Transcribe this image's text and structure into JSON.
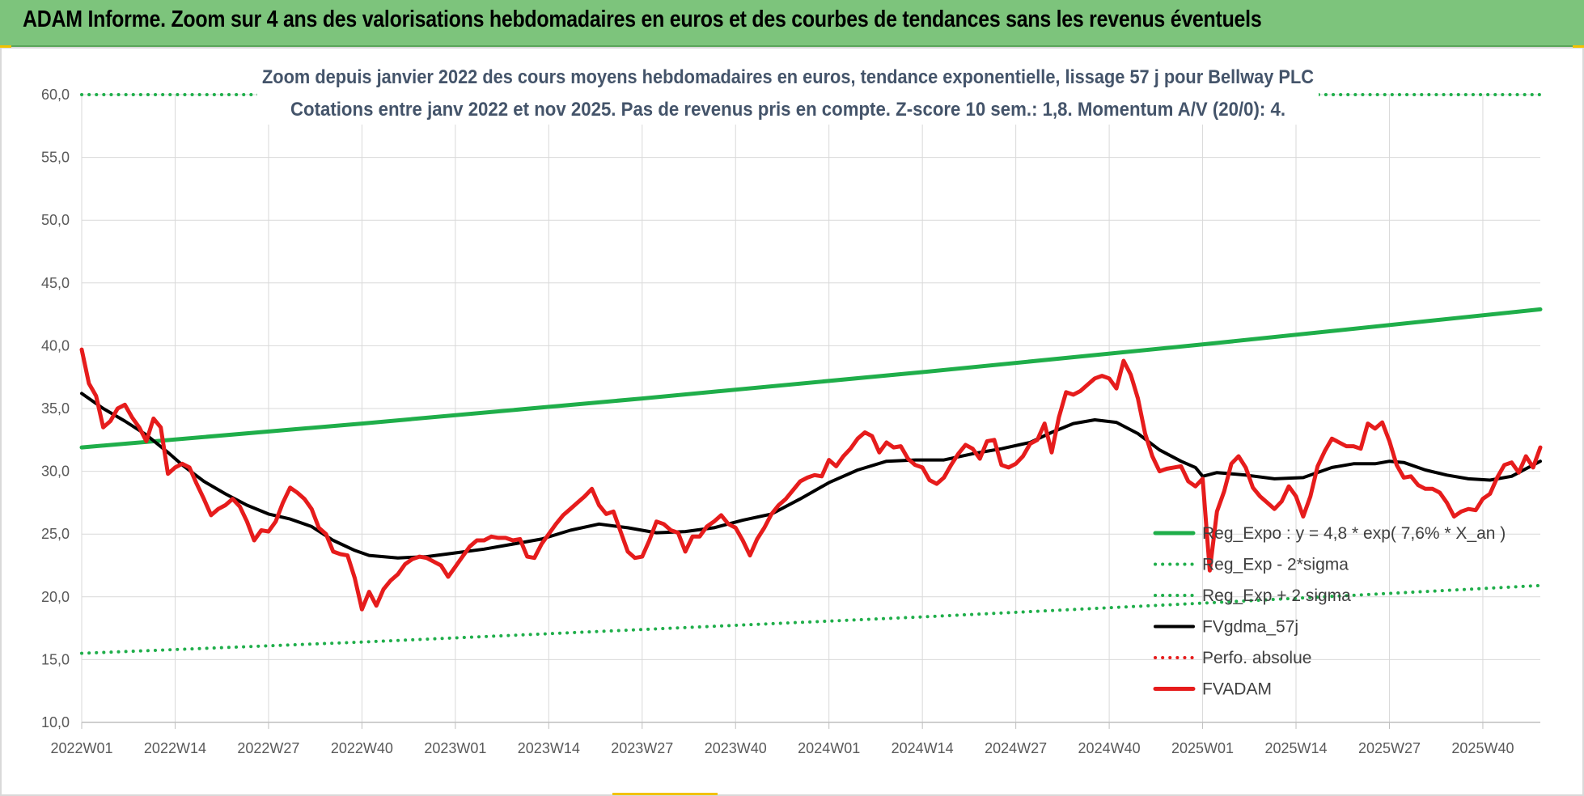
{
  "banner": {
    "title": "ADAM Informe. Zoom sur 4 ans des valorisations hebdomadaires en euros et des courbes de tendances sans les revenus éventuels"
  },
  "colors": {
    "banner_bg": "#7dc47c",
    "trend_green": "#1fae4a",
    "smooth_black": "#000000",
    "price_red": "#e61c1c",
    "grid": "#d9d9d9",
    "title_text": "#44546a"
  },
  "chart_data": {
    "type": "line",
    "title_line1": "Zoom depuis janvier 2022 des cours moyens hebdomadaires en euros, tendance exponentielle, lissage 57 j pour Bellway PLC",
    "title_line2": "Cotations entre janv 2022 et nov 2025. Pas de revenus pris en compte. Z-score 10 sem.: 1,8. Momentum A/V (20/0): 4.",
    "xlabel": "",
    "ylabel": "",
    "ylim": [
      10,
      60
    ],
    "yticks": [
      "10,0",
      "15,0",
      "20,0",
      "25,0",
      "30,0",
      "35,0",
      "40,0",
      "45,0",
      "50,0",
      "55,0",
      "60,0"
    ],
    "x_range_weeks": [
      0,
      203
    ],
    "xticks": [
      {
        "week": 0,
        "label": "2022W01"
      },
      {
        "week": 13,
        "label": "2022W14"
      },
      {
        "week": 26,
        "label": "2022W27"
      },
      {
        "week": 39,
        "label": "2022W40"
      },
      {
        "week": 52,
        "label": "2023W01"
      },
      {
        "week": 65,
        "label": "2023W14"
      },
      {
        "week": 78,
        "label": "2023W27"
      },
      {
        "week": 91,
        "label": "2023W40"
      },
      {
        "week": 104,
        "label": "2024W01"
      },
      {
        "week": 117,
        "label": "2024W14"
      },
      {
        "week": 130,
        "label": "2024W27"
      },
      {
        "week": 143,
        "label": "2024W40"
      },
      {
        "week": 156,
        "label": "2025W01"
      },
      {
        "week": 169,
        "label": "2025W14"
      },
      {
        "week": 182,
        "label": "2025W27"
      },
      {
        "week": 195,
        "label": "2025W40"
      }
    ],
    "grid": true,
    "legend_position": "bottom-right",
    "series": [
      {
        "name": "Reg_Expo : y = 4,8 * exp( 7,6% * X_an )",
        "style": "solid-thick",
        "color": "#1fae4a",
        "points": [
          [
            0,
            31.9
          ],
          [
            39,
            33.8
          ],
          [
            78,
            35.8
          ],
          [
            117,
            37.9
          ],
          [
            156,
            40.1
          ],
          [
            203,
            42.9
          ]
        ]
      },
      {
        "name": "Reg_Exp - 2*sigma",
        "style": "dotted",
        "color": "#1fae4a",
        "points": [
          [
            0,
            15.5
          ],
          [
            39,
            16.4
          ],
          [
            78,
            17.4
          ],
          [
            117,
            18.4
          ],
          [
            156,
            19.5
          ],
          [
            203,
            20.9
          ]
        ]
      },
      {
        "name": "Reg_Exp + 2 sigma",
        "style": "dotted",
        "color": "#1fae4a",
        "points": [
          [
            0,
            60.0
          ],
          [
            203,
            60.0
          ]
        ]
      },
      {
        "name": "FVgdma_57j",
        "style": "solid",
        "color": "#000000",
        "points": [
          [
            0,
            36.2
          ],
          [
            3,
            35.0
          ],
          [
            6,
            34.0
          ],
          [
            9,
            32.9
          ],
          [
            12,
            31.5
          ],
          [
            14,
            30.5
          ],
          [
            17,
            29.2
          ],
          [
            20,
            28.2
          ],
          [
            23,
            27.3
          ],
          [
            26,
            26.6
          ],
          [
            29,
            26.2
          ],
          [
            32,
            25.6
          ],
          [
            35,
            24.5
          ],
          [
            38,
            23.7
          ],
          [
            40,
            23.3
          ],
          [
            44,
            23.1
          ],
          [
            48,
            23.2
          ],
          [
            52,
            23.5
          ],
          [
            56,
            23.8
          ],
          [
            60,
            24.2
          ],
          [
            64,
            24.6
          ],
          [
            68,
            25.3
          ],
          [
            72,
            25.8
          ],
          [
            76,
            25.5
          ],
          [
            80,
            25.1
          ],
          [
            84,
            25.2
          ],
          [
            88,
            25.5
          ],
          [
            92,
            26.1
          ],
          [
            96,
            26.6
          ],
          [
            100,
            27.8
          ],
          [
            104,
            29.1
          ],
          [
            108,
            30.1
          ],
          [
            112,
            30.8
          ],
          [
            116,
            30.9
          ],
          [
            120,
            30.9
          ],
          [
            124,
            31.4
          ],
          [
            128,
            31.8
          ],
          [
            132,
            32.3
          ],
          [
            135,
            33.1
          ],
          [
            138,
            33.8
          ],
          [
            141,
            34.1
          ],
          [
            144,
            33.9
          ],
          [
            147,
            33.0
          ],
          [
            150,
            31.7
          ],
          [
            153,
            30.8
          ],
          [
            155,
            30.3
          ],
          [
            156,
            29.6
          ],
          [
            158,
            29.9
          ],
          [
            162,
            29.7
          ],
          [
            166,
            29.4
          ],
          [
            170,
            29.5
          ],
          [
            174,
            30.3
          ],
          [
            177,
            30.6
          ],
          [
            180,
            30.6
          ],
          [
            182,
            30.8
          ],
          [
            184,
            30.7
          ],
          [
            187,
            30.1
          ],
          [
            190,
            29.7
          ],
          [
            193,
            29.4
          ],
          [
            196,
            29.3
          ],
          [
            199,
            29.6
          ],
          [
            201,
            30.2
          ],
          [
            203,
            30.8
          ]
        ]
      },
      {
        "name": "Perfo. absolue",
        "style": "dotted",
        "color": "#e61c1c",
        "points": []
      },
      {
        "name": "FVADAM",
        "style": "solid-thick",
        "color": "#e61c1c",
        "points": [
          [
            0,
            39.7
          ],
          [
            1,
            37.0
          ],
          [
            2,
            36.0
          ],
          [
            3,
            33.5
          ],
          [
            4,
            34.0
          ],
          [
            5,
            35.0
          ],
          [
            6,
            35.3
          ],
          [
            7,
            34.3
          ],
          [
            8,
            33.5
          ],
          [
            9,
            32.4
          ],
          [
            10,
            34.2
          ],
          [
            11,
            33.5
          ],
          [
            12,
            29.8
          ],
          [
            13,
            30.3
          ],
          [
            14,
            30.6
          ],
          [
            15,
            30.3
          ],
          [
            16,
            29.0
          ],
          [
            17,
            27.8
          ],
          [
            18,
            26.5
          ],
          [
            19,
            27.0
          ],
          [
            20,
            27.3
          ],
          [
            21,
            27.8
          ],
          [
            22,
            27.2
          ],
          [
            23,
            26.0
          ],
          [
            24,
            24.5
          ],
          [
            25,
            25.3
          ],
          [
            26,
            25.2
          ],
          [
            27,
            26.0
          ],
          [
            28,
            27.5
          ],
          [
            29,
            28.7
          ],
          [
            30,
            28.3
          ],
          [
            31,
            27.8
          ],
          [
            32,
            27.0
          ],
          [
            33,
            25.5
          ],
          [
            34,
            25.0
          ],
          [
            35,
            23.6
          ],
          [
            36,
            23.4
          ],
          [
            37,
            23.3
          ],
          [
            38,
            21.5
          ],
          [
            39,
            19.0
          ],
          [
            40,
            20.4
          ],
          [
            41,
            19.3
          ],
          [
            42,
            20.6
          ],
          [
            43,
            21.3
          ],
          [
            44,
            21.8
          ],
          [
            45,
            22.6
          ],
          [
            46,
            23.0
          ],
          [
            47,
            23.2
          ],
          [
            48,
            23.1
          ],
          [
            49,
            22.8
          ],
          [
            50,
            22.5
          ],
          [
            51,
            21.6
          ],
          [
            52,
            22.4
          ],
          [
            53,
            23.2
          ],
          [
            54,
            24.0
          ],
          [
            55,
            24.5
          ],
          [
            56,
            24.5
          ],
          [
            57,
            24.8
          ],
          [
            58,
            24.7
          ],
          [
            59,
            24.7
          ],
          [
            60,
            24.5
          ],
          [
            61,
            24.6
          ],
          [
            62,
            23.2
          ],
          [
            63,
            23.1
          ],
          [
            64,
            24.2
          ],
          [
            65,
            25.0
          ],
          [
            66,
            25.8
          ],
          [
            67,
            26.5
          ],
          [
            68,
            27.0
          ],
          [
            69,
            27.5
          ],
          [
            70,
            28.0
          ],
          [
            71,
            28.6
          ],
          [
            72,
            27.3
          ],
          [
            73,
            26.6
          ],
          [
            74,
            26.8
          ],
          [
            75,
            25.2
          ],
          [
            76,
            23.6
          ],
          [
            77,
            23.1
          ],
          [
            78,
            23.2
          ],
          [
            79,
            24.5
          ],
          [
            80,
            26.0
          ],
          [
            81,
            25.8
          ],
          [
            82,
            25.3
          ],
          [
            83,
            25.1
          ],
          [
            84,
            23.6
          ],
          [
            85,
            24.8
          ],
          [
            86,
            24.8
          ],
          [
            87,
            25.6
          ],
          [
            88,
            26.0
          ],
          [
            89,
            26.5
          ],
          [
            90,
            25.8
          ],
          [
            91,
            25.5
          ],
          [
            92,
            24.5
          ],
          [
            93,
            23.3
          ],
          [
            94,
            24.6
          ],
          [
            95,
            25.5
          ],
          [
            96,
            26.6
          ],
          [
            97,
            27.3
          ],
          [
            98,
            27.8
          ],
          [
            99,
            28.5
          ],
          [
            100,
            29.2
          ],
          [
            101,
            29.5
          ],
          [
            102,
            29.7
          ],
          [
            103,
            29.6
          ],
          [
            104,
            30.9
          ],
          [
            105,
            30.4
          ],
          [
            106,
            31.2
          ],
          [
            107,
            31.8
          ],
          [
            108,
            32.6
          ],
          [
            109,
            33.1
          ],
          [
            110,
            32.8
          ],
          [
            111,
            31.5
          ],
          [
            112,
            32.3
          ],
          [
            113,
            31.9
          ],
          [
            114,
            32.0
          ],
          [
            115,
            31.0
          ],
          [
            116,
            30.5
          ],
          [
            117,
            30.3
          ],
          [
            118,
            29.3
          ],
          [
            119,
            29.0
          ],
          [
            120,
            29.5
          ],
          [
            121,
            30.5
          ],
          [
            122,
            31.4
          ],
          [
            123,
            32.1
          ],
          [
            124,
            31.8
          ],
          [
            125,
            31.0
          ],
          [
            126,
            32.4
          ],
          [
            127,
            32.5
          ],
          [
            128,
            30.5
          ],
          [
            129,
            30.3
          ],
          [
            130,
            30.6
          ],
          [
            131,
            31.2
          ],
          [
            132,
            32.2
          ],
          [
            133,
            32.5
          ],
          [
            134,
            33.8
          ],
          [
            135,
            31.5
          ],
          [
            136,
            34.3
          ],
          [
            137,
            36.3
          ],
          [
            138,
            36.1
          ],
          [
            139,
            36.4
          ],
          [
            140,
            36.9
          ],
          [
            141,
            37.4
          ],
          [
            142,
            37.6
          ],
          [
            143,
            37.4
          ],
          [
            144,
            36.6
          ],
          [
            145,
            38.8
          ],
          [
            146,
            37.7
          ],
          [
            147,
            35.8
          ],
          [
            148,
            33.0
          ],
          [
            149,
            31.2
          ],
          [
            150,
            30.0
          ],
          [
            151,
            30.2
          ],
          [
            152,
            30.3
          ],
          [
            153,
            30.4
          ],
          [
            154,
            29.2
          ],
          [
            155,
            28.8
          ],
          [
            156,
            29.4
          ],
          [
            157,
            22.1
          ],
          [
            158,
            26.8
          ],
          [
            159,
            28.4
          ],
          [
            160,
            30.6
          ],
          [
            161,
            31.2
          ],
          [
            162,
            30.3
          ],
          [
            163,
            28.7
          ],
          [
            164,
            28.0
          ],
          [
            165,
            27.5
          ],
          [
            166,
            27.0
          ],
          [
            167,
            27.6
          ],
          [
            168,
            28.8
          ],
          [
            169,
            28.0
          ],
          [
            170,
            26.4
          ],
          [
            171,
            28.0
          ],
          [
            172,
            30.4
          ],
          [
            173,
            31.6
          ],
          [
            174,
            32.6
          ],
          [
            175,
            32.3
          ],
          [
            176,
            32.0
          ],
          [
            177,
            32.0
          ],
          [
            178,
            31.8
          ],
          [
            179,
            33.8
          ],
          [
            180,
            33.4
          ],
          [
            181,
            33.9
          ],
          [
            182,
            32.4
          ],
          [
            183,
            30.5
          ],
          [
            184,
            29.5
          ],
          [
            185,
            29.6
          ],
          [
            186,
            28.9
          ],
          [
            187,
            28.6
          ],
          [
            188,
            28.6
          ],
          [
            189,
            28.3
          ],
          [
            190,
            27.5
          ],
          [
            191,
            26.4
          ],
          [
            192,
            26.8
          ],
          [
            193,
            27.0
          ],
          [
            194,
            26.9
          ],
          [
            195,
            27.8
          ],
          [
            196,
            28.2
          ],
          [
            197,
            29.5
          ],
          [
            198,
            30.5
          ],
          [
            199,
            30.7
          ],
          [
            200,
            29.9
          ],
          [
            201,
            31.2
          ],
          [
            202,
            30.3
          ],
          [
            203,
            31.9
          ]
        ]
      }
    ]
  }
}
